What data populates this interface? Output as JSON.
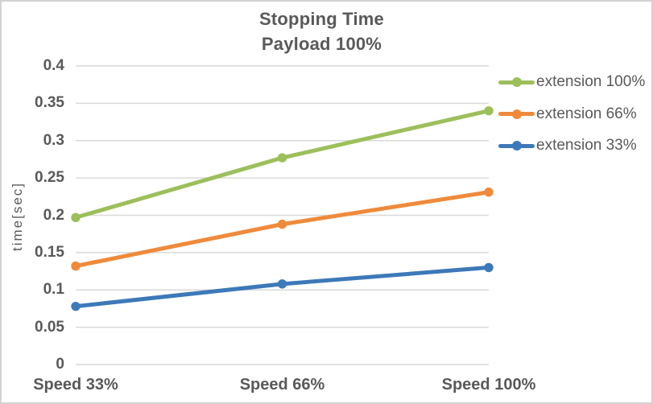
{
  "title": {
    "line1": "Stopping Time",
    "line2": "Payload 100%"
  },
  "chart_data": {
    "type": "line",
    "title": "Stopping Time",
    "subtitle": "Payload 100%",
    "categories": [
      "Speed 33%",
      "Speed 66%",
      "Speed 100%"
    ],
    "series": [
      {
        "name": "extension 100%",
        "color": "#9cbf5b",
        "values": [
          0.197,
          0.277,
          0.34
        ]
      },
      {
        "name": "extension 66%",
        "color": "#ef8a3b",
        "values": [
          0.132,
          0.188,
          0.231
        ]
      },
      {
        "name": "extension 33%",
        "color": "#3d79b8",
        "values": [
          0.078,
          0.108,
          0.13
        ]
      }
    ],
    "xlabel": "",
    "ylabel": "time[sec]",
    "ylim": [
      0,
      0.4
    ],
    "yticks": [
      0,
      0.05,
      0.1,
      0.15,
      0.2,
      0.25,
      0.3,
      0.35,
      0.4
    ],
    "ytick_labels": [
      "0",
      "0.05",
      "0.1",
      "0.15",
      "0.2",
      "0.25",
      "0.3",
      "0.35",
      "0.4"
    ],
    "grid": true,
    "legend_position": "right",
    "marker": "circle"
  },
  "colors": {
    "text": "#595959",
    "grid": "#d9d9d9",
    "border": "#d2d2d2",
    "background": "#ffffff"
  }
}
